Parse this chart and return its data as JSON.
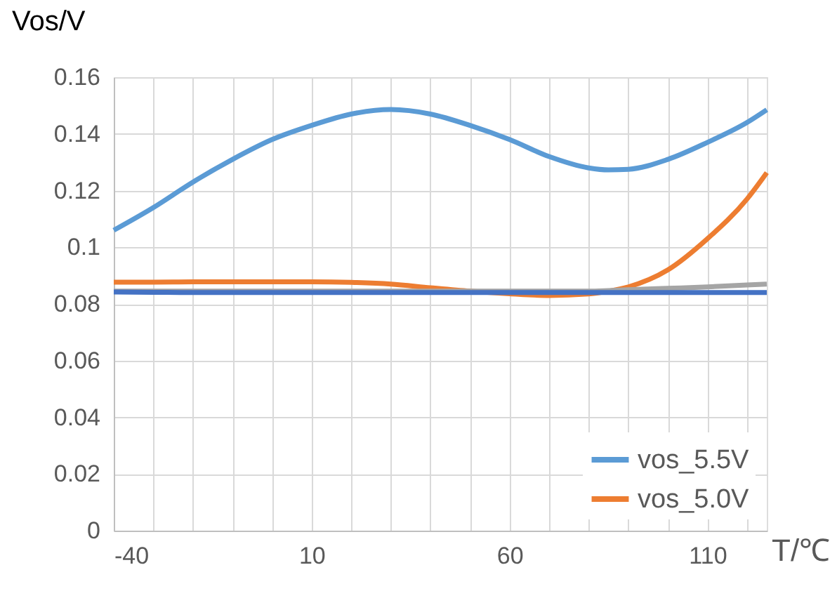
{
  "chart_data": {
    "type": "line",
    "xlabel": "T/℃",
    "ylabel": "Vos/V",
    "x": [
      -40,
      -30,
      -20,
      -10,
      0,
      10,
      20,
      30,
      40,
      50,
      60,
      70,
      80,
      85,
      90,
      100,
      110,
      120,
      125
    ],
    "xlim": [
      -40,
      125
    ],
    "xticks": [
      -40,
      {
        "value": -30,
        "label": null
      },
      {
        "value": -20,
        "label": null
      },
      {
        "value": -10,
        "label": null
      },
      {
        "value": 0,
        "label": null
      },
      10,
      {
        "value": 20,
        "label": null
      },
      {
        "value": 30,
        "label": null
      },
      {
        "value": 40,
        "label": null
      },
      {
        "value": 50,
        "label": null
      },
      60,
      {
        "value": 70,
        "label": null
      },
      {
        "value": 80,
        "label": null
      },
      {
        "value": 90,
        "label": null
      },
      {
        "value": 100,
        "label": null
      },
      110,
      {
        "value": 120,
        "label": null
      }
    ],
    "ylim": [
      0,
      0.16
    ],
    "yticks": [
      0,
      0.02,
      0.04,
      0.06,
      0.08,
      0.1,
      0.12,
      0.14,
      0.16
    ],
    "grid": true,
    "legend": "bottom right",
    "line_style": "solid",
    "marker": "none",
    "series": [
      {
        "name": "vos_5.5V",
        "color": "#5b9bd5",
        "values": [
          0.106,
          0.114,
          0.123,
          0.131,
          0.138,
          0.143,
          0.147,
          0.1486,
          0.147,
          0.143,
          0.138,
          0.132,
          0.128,
          0.1273,
          0.1275,
          0.131,
          0.137,
          0.144,
          0.1485
        ]
      },
      {
        "name": "vos_5.0V",
        "color": "#ed7d31",
        "values": [
          0.0877,
          0.0877,
          0.0878,
          0.0878,
          0.0878,
          0.0878,
          0.0876,
          0.087,
          0.0857,
          0.0845,
          0.0836,
          0.083,
          0.0835,
          0.0845,
          0.086,
          0.092,
          0.103,
          0.117,
          0.1263
        ]
      },
      {
        "color": "#a5a5a5",
        "values": [
          0.0845,
          0.0845,
          0.0845,
          0.0845,
          0.0845,
          0.0845,
          0.0845,
          0.0845,
          0.0845,
          0.0845,
          0.0845,
          0.0845,
          0.0845,
          0.0847,
          0.085,
          0.0855,
          0.086,
          0.0867,
          0.087
        ]
      },
      {
        "color": "#4472c4",
        "values": [
          0.0842,
          0.0841,
          0.084,
          0.084,
          0.084,
          0.084,
          0.084,
          0.084,
          0.084,
          0.084,
          0.084,
          0.084,
          0.084,
          0.084,
          0.084,
          0.084,
          0.084,
          0.084,
          0.084
        ]
      }
    ]
  }
}
